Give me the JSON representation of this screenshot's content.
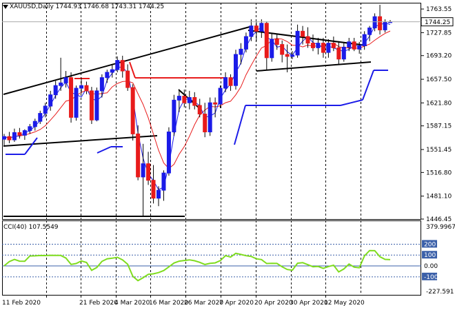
{
  "symbol_label": "XAUUSD,Daily",
  "ohlc": {
    "open": "1744.93",
    "high": "1746.68",
    "low": "1743.31",
    "close": "1744.25"
  },
  "price_axis_ticks": [
    "1763.55",
    "1727.85",
    "1693.20",
    "1657.50",
    "1621.80",
    "1587.15",
    "1551.45",
    "1516.80",
    "1481.10",
    "1446.45"
  ],
  "current_price_tag": "1744.25",
  "cci": {
    "title": "CCI(40)",
    "value": "107.5549",
    "max_label": "379.9967",
    "min_label": "-227.591",
    "level_labels": [
      "200",
      "100",
      "0.00",
      "-100"
    ]
  },
  "date_labels": [
    "11 Feb 2020",
    "21 Feb 2020",
    "4 Mar 2020",
    "16 Mar 2020",
    "26 Mar 2020",
    "7 Apr 2020",
    "20 Apr 2020",
    "30 Apr 2020",
    "12 May 2020"
  ],
  "colors": {
    "bull": "#1b1be8",
    "bear": "#e81b1b",
    "grid": "#000000",
    "cci_line": "#7fdc1e",
    "cci_level_bg": "#3a5fa8",
    "price_tag_bg": "#ffffff"
  },
  "chart_data": {
    "type": "candlestick",
    "ylim": [
      1446.45,
      1773.0
    ],
    "candles": [
      [
        1567,
        1575,
        1556,
        1571
      ],
      [
        1571,
        1578,
        1561,
        1566
      ],
      [
        1566,
        1583,
        1563,
        1577
      ],
      [
        1577,
        1584,
        1568,
        1573
      ],
      [
        1573,
        1582,
        1566,
        1580
      ],
      [
        1580,
        1590,
        1575,
        1586
      ],
      [
        1586,
        1598,
        1580,
        1594
      ],
      [
        1594,
        1610,
        1590,
        1606
      ],
      [
        1606,
        1622,
        1600,
        1617
      ],
      [
        1617,
        1640,
        1610,
        1634
      ],
      [
        1634,
        1655,
        1628,
        1648
      ],
      [
        1648,
        1690,
        1640,
        1652
      ],
      [
        1652,
        1670,
        1645,
        1660
      ],
      [
        1660,
        1668,
        1592,
        1600
      ],
      [
        1600,
        1648,
        1595,
        1644
      ],
      [
        1644,
        1660,
        1636,
        1648
      ],
      [
        1648,
        1654,
        1635,
        1640
      ],
      [
        1640,
        1646,
        1590,
        1596
      ],
      [
        1596,
        1645,
        1594,
        1640
      ],
      [
        1640,
        1665,
        1630,
        1660
      ],
      [
        1660,
        1672,
        1652,
        1668
      ],
      [
        1668,
        1680,
        1660,
        1672
      ],
      [
        1672,
        1692,
        1668,
        1686
      ],
      [
        1686,
        1693,
        1660,
        1670
      ],
      [
        1670,
        1680,
        1640,
        1645
      ],
      [
        1645,
        1650,
        1565,
        1575
      ],
      [
        1575,
        1588,
        1505,
        1510
      ],
      [
        1510,
        1560,
        1450,
        1530
      ],
      [
        1530,
        1548,
        1498,
        1505
      ],
      [
        1505,
        1528,
        1470,
        1478
      ],
      [
        1478,
        1496,
        1466,
        1490
      ],
      [
        1490,
        1520,
        1474,
        1516
      ],
      [
        1516,
        1585,
        1512,
        1578
      ],
      [
        1578,
        1634,
        1572,
        1626
      ],
      [
        1626,
        1640,
        1608,
        1632
      ],
      [
        1632,
        1642,
        1615,
        1622
      ],
      [
        1622,
        1640,
        1612,
        1630
      ],
      [
        1630,
        1638,
        1612,
        1618
      ],
      [
        1618,
        1628,
        1600,
        1605
      ],
      [
        1605,
        1622,
        1570,
        1578
      ],
      [
        1578,
        1630,
        1572,
        1622
      ],
      [
        1622,
        1630,
        1600,
        1620
      ],
      [
        1620,
        1648,
        1614,
        1644
      ],
      [
        1644,
        1668,
        1638,
        1660
      ],
      [
        1660,
        1665,
        1640,
        1648
      ],
      [
        1648,
        1702,
        1642,
        1695
      ],
      [
        1695,
        1712,
        1680,
        1703
      ],
      [
        1703,
        1728,
        1698,
        1722
      ],
      [
        1722,
        1748,
        1715,
        1738
      ],
      [
        1738,
        1745,
        1715,
        1730
      ],
      [
        1730,
        1748,
        1720,
        1742
      ],
      [
        1742,
        1745,
        1672,
        1690
      ],
      [
        1690,
        1726,
        1684,
        1718
      ],
      [
        1718,
        1726,
        1702,
        1710
      ],
      [
        1710,
        1716,
        1683,
        1695
      ],
      [
        1695,
        1710,
        1668,
        1692
      ],
      [
        1692,
        1700,
        1688,
        1694
      ],
      [
        1694,
        1740,
        1690,
        1730
      ],
      [
        1730,
        1738,
        1710,
        1722
      ],
      [
        1722,
        1736,
        1705,
        1712
      ],
      [
        1712,
        1725,
        1700,
        1705
      ],
      [
        1705,
        1720,
        1695,
        1712
      ],
      [
        1712,
        1720,
        1690,
        1698
      ],
      [
        1698,
        1718,
        1690,
        1712
      ],
      [
        1712,
        1722,
        1700,
        1705
      ],
      [
        1705,
        1715,
        1680,
        1688
      ],
      [
        1688,
        1712,
        1684,
        1706
      ],
      [
        1706,
        1720,
        1700,
        1714
      ],
      [
        1714,
        1720,
        1700,
        1703
      ],
      [
        1703,
        1714,
        1696,
        1708
      ],
      [
        1708,
        1730,
        1702,
        1725
      ],
      [
        1725,
        1738,
        1715,
        1735
      ],
      [
        1735,
        1757,
        1730,
        1752
      ],
      [
        1752,
        1770,
        1725,
        1732
      ],
      [
        1732,
        1748,
        1728,
        1744
      ],
      [
        1744,
        1747,
        1743,
        1744
      ]
    ]
  }
}
